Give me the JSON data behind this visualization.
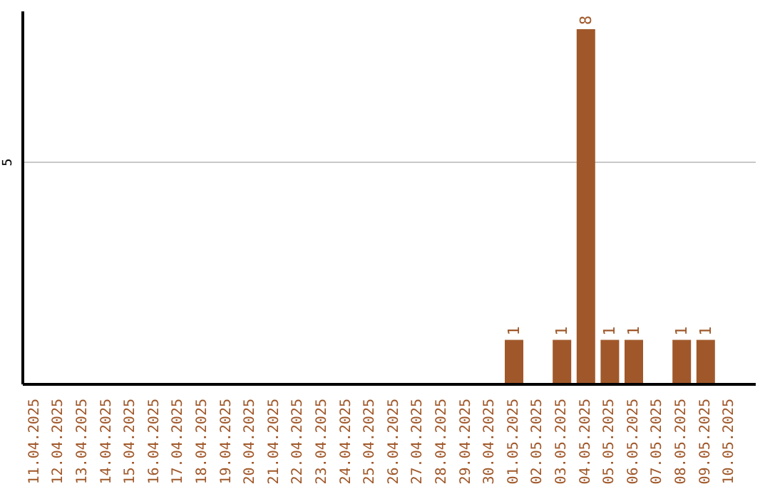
{
  "chart_data": {
    "type": "bar",
    "categories": [
      "11.04.2025",
      "12.04.2025",
      "13.04.2025",
      "14.04.2025",
      "15.04.2025",
      "16.04.2025",
      "17.04.2025",
      "18.04.2025",
      "19.04.2025",
      "20.04.2025",
      "21.04.2025",
      "22.04.2025",
      "23.04.2025",
      "24.04.2025",
      "25.04.2025",
      "26.04.2025",
      "27.04.2025",
      "28.04.2025",
      "29.04.2025",
      "30.04.2025",
      "01.05.2025",
      "02.05.2025",
      "03.05.2025",
      "04.05.2025",
      "05.05.2025",
      "06.05.2025",
      "07.05.2025",
      "08.05.2025",
      "09.05.2025",
      "10.05.2025"
    ],
    "values": [
      null,
      null,
      null,
      null,
      null,
      null,
      null,
      null,
      null,
      null,
      null,
      null,
      null,
      null,
      null,
      null,
      null,
      null,
      null,
      null,
      1,
      null,
      1,
      8,
      1,
      1,
      null,
      1,
      1,
      null
    ],
    "data_labels": true,
    "color": "#a0582a",
    "ylim": [
      0,
      8.4
    ],
    "yticks": [
      5
    ],
    "grid": "y"
  }
}
